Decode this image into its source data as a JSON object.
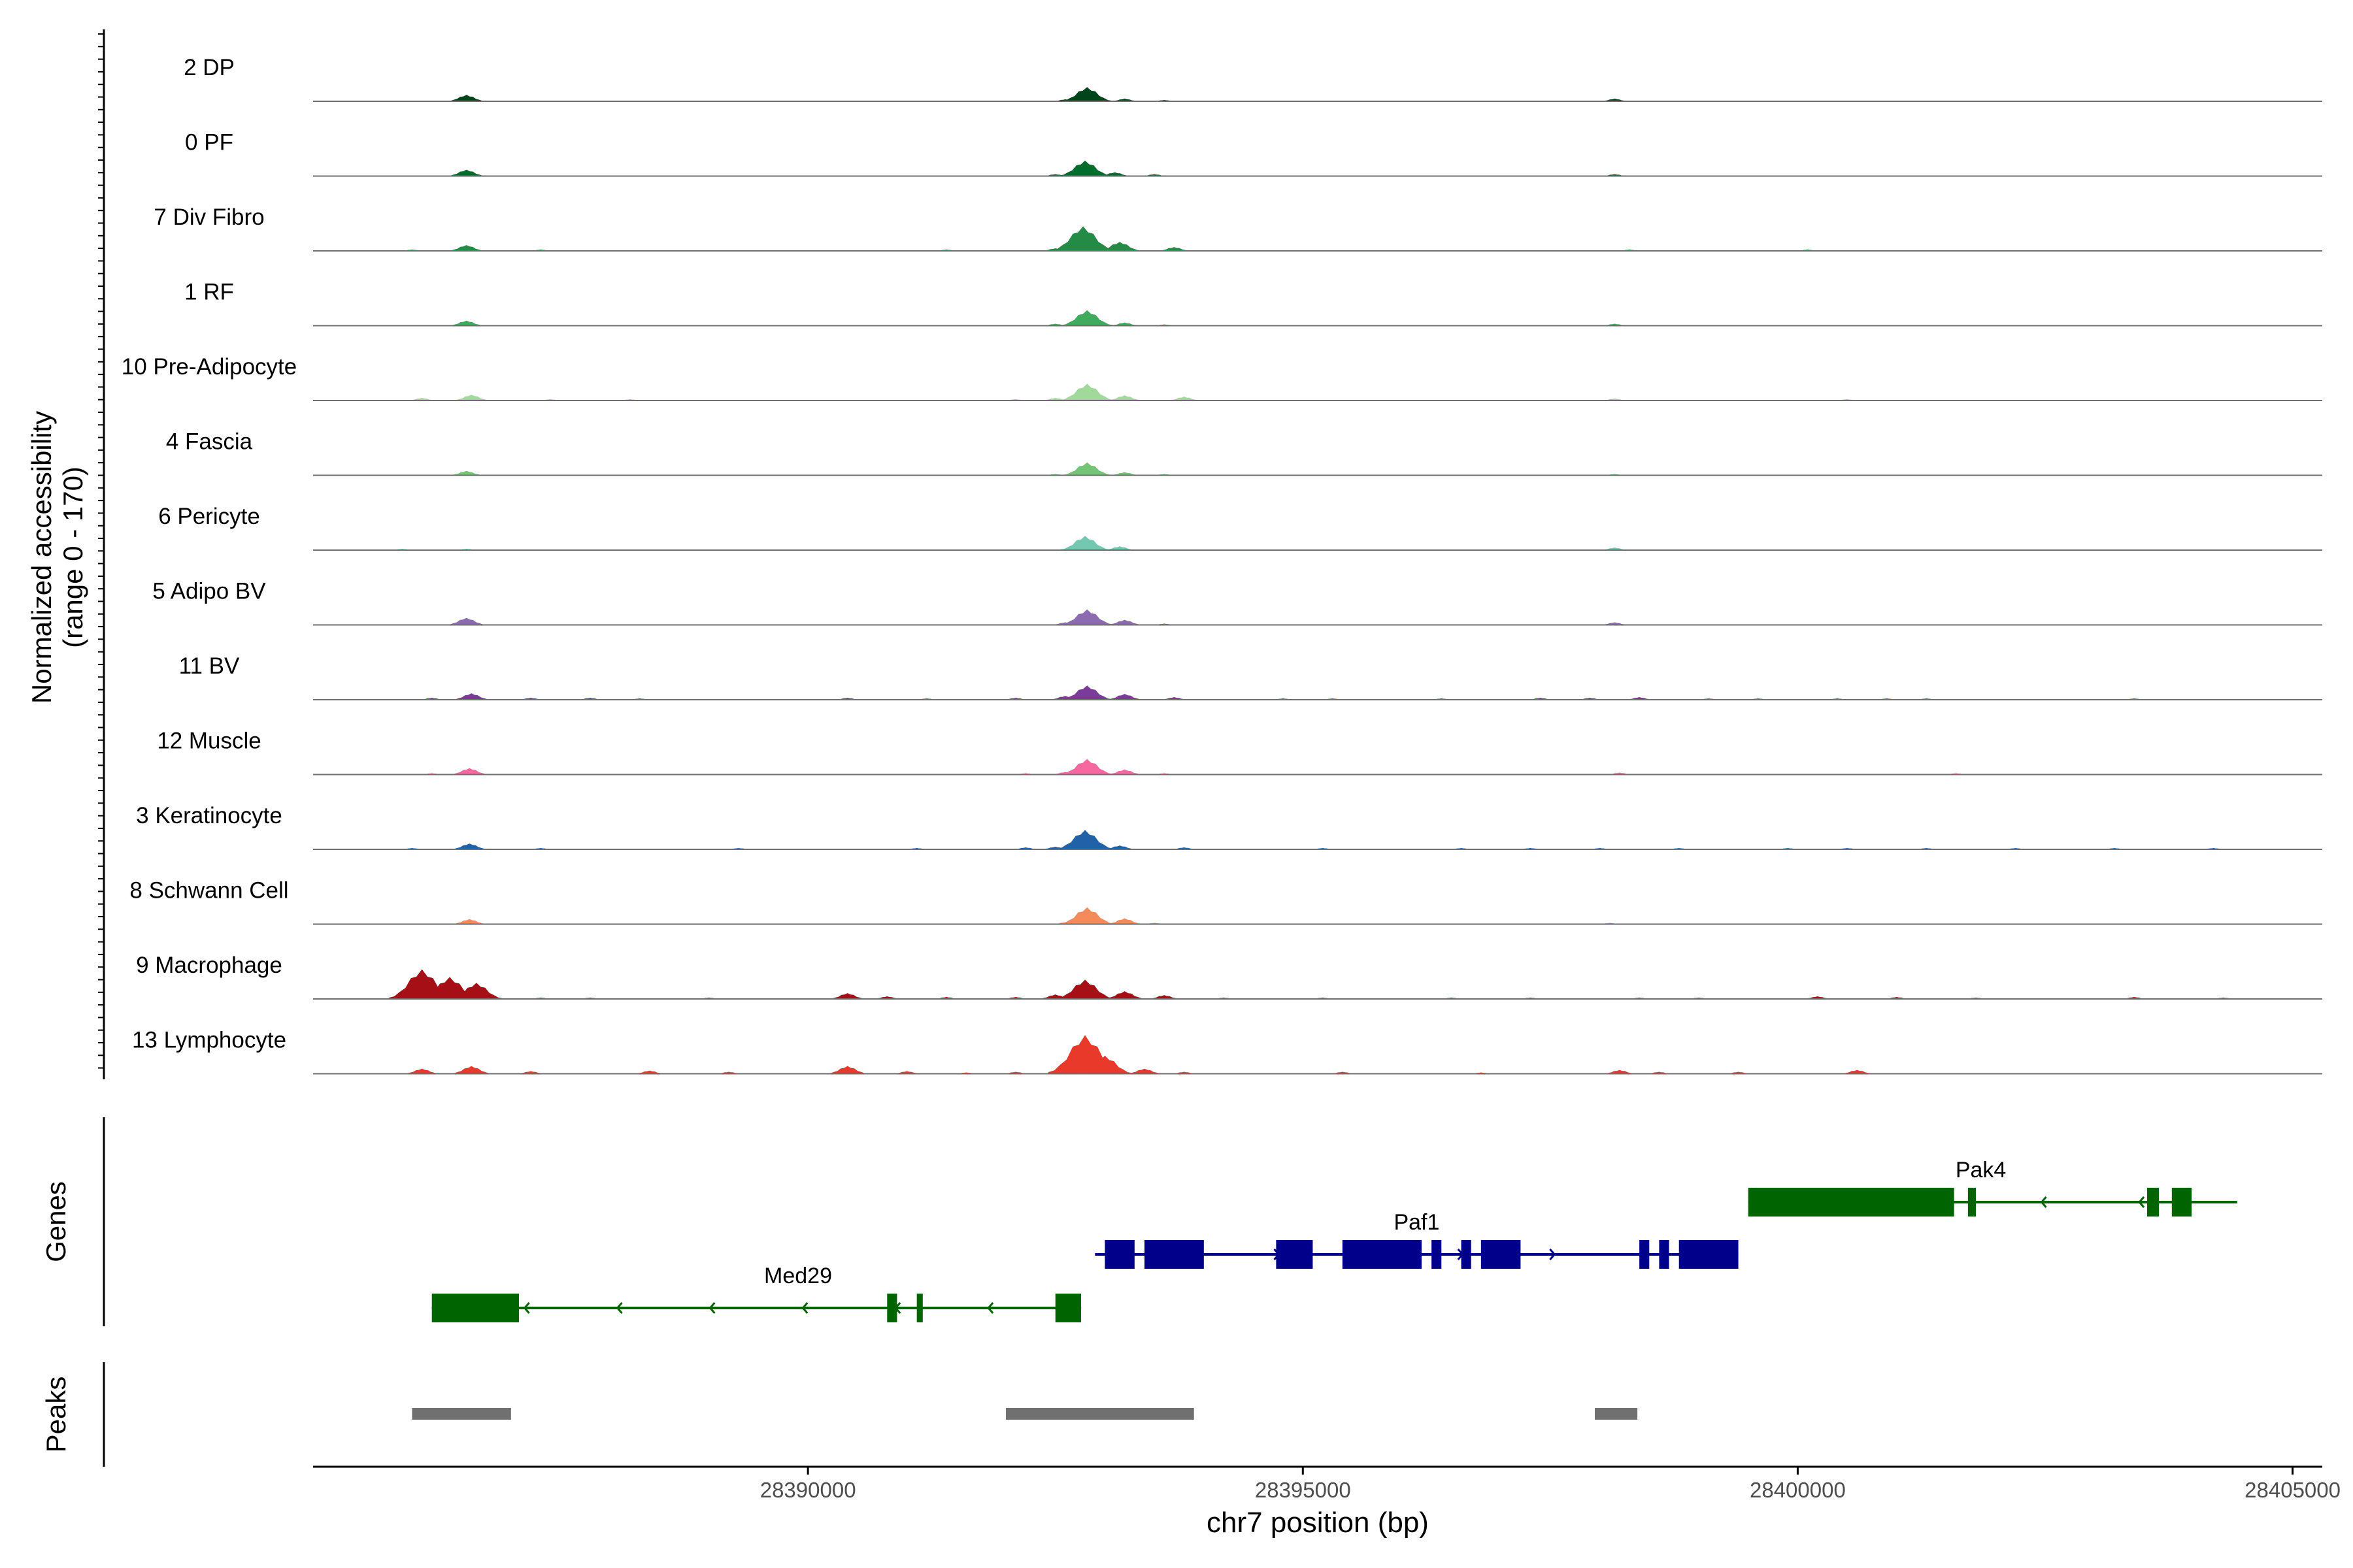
{
  "chart_data": {
    "type": "area",
    "title": "",
    "xlabel": "chr7 position (bp)",
    "ylabel_line1": "Normalized accessibility",
    "ylabel_line2": "(range 0 - 170)",
    "ylim": [
      0,
      170
    ],
    "xlim": [
      28385000,
      28405300
    ],
    "x_ticks": [
      {
        "value": 28390000,
        "label": "28390000"
      },
      {
        "value": 28395000,
        "label": "28395000"
      },
      {
        "value": 28400000,
        "label": "28400000"
      },
      {
        "value": 28405000,
        "label": "28405000"
      }
    ],
    "tracks": [
      {
        "name": "2 DP",
        "color": "#00441b",
        "peaks": [
          [
            28386550,
            10
          ],
          [
            28388100,
            1
          ],
          [
            28392600,
            3
          ],
          [
            28392820,
            22
          ],
          [
            28393200,
            4
          ],
          [
            28393600,
            2
          ],
          [
            28398150,
            4
          ],
          [
            28400700,
            1
          ],
          [
            28403000,
            1
          ]
        ]
      },
      {
        "name": "0 PF",
        "color": "#006d2c",
        "peaks": [
          [
            28386550,
            10
          ],
          [
            28388300,
            1
          ],
          [
            28392500,
            3
          ],
          [
            28392800,
            24
          ],
          [
            28393100,
            6
          ],
          [
            28393500,
            3
          ],
          [
            28396300,
            1
          ],
          [
            28398150,
            3
          ],
          [
            28400300,
            1
          ],
          [
            28401000,
            1
          ]
        ]
      },
      {
        "name": "7 Div Fibro",
        "color": "#238b45",
        "peaks": [
          [
            28386000,
            2
          ],
          [
            28386550,
            9
          ],
          [
            28387300,
            2
          ],
          [
            28388400,
            1
          ],
          [
            28389500,
            1
          ],
          [
            28391400,
            2
          ],
          [
            28392500,
            4
          ],
          [
            28392780,
            38
          ],
          [
            28393150,
            14
          ],
          [
            28393700,
            6
          ],
          [
            28395200,
            1
          ],
          [
            28396300,
            1
          ],
          [
            28397200,
            1
          ],
          [
            28398300,
            2
          ],
          [
            28399500,
            1
          ],
          [
            28400100,
            2
          ],
          [
            28401600,
            1
          ],
          [
            28402500,
            1
          ],
          [
            28403400,
            1
          ]
        ]
      },
      {
        "name": "1 RF",
        "color": "#41ab5d",
        "peaks": [
          [
            28386550,
            8
          ],
          [
            28388200,
            1
          ],
          [
            28392500,
            3
          ],
          [
            28392820,
            24
          ],
          [
            28393200,
            5
          ],
          [
            28393600,
            2
          ],
          [
            28398150,
            3
          ]
        ]
      },
      {
        "name": "10 Pre-Adipocyte",
        "color": "#a1d99b",
        "peaks": [
          [
            28386100,
            4
          ],
          [
            28386600,
            9
          ],
          [
            28387400,
            2
          ],
          [
            28388200,
            2
          ],
          [
            28389000,
            1
          ],
          [
            28390400,
            1
          ],
          [
            28392100,
            2
          ],
          [
            28392500,
            4
          ],
          [
            28392820,
            26
          ],
          [
            28393200,
            8
          ],
          [
            28393800,
            6
          ],
          [
            28395400,
            1
          ],
          [
            28396400,
            1
          ],
          [
            28398150,
            3
          ],
          [
            28399300,
            1
          ],
          [
            28400500,
            2
          ],
          [
            28401600,
            1
          ],
          [
            28402500,
            1
          ],
          [
            28403200,
            1
          ],
          [
            28404000,
            1
          ]
        ]
      },
      {
        "name": "4 Fascia",
        "color": "#74c476",
        "peaks": [
          [
            28386550,
            7
          ],
          [
            28392500,
            2
          ],
          [
            28392820,
            20
          ],
          [
            28393200,
            5
          ],
          [
            28393600,
            2
          ],
          [
            28398150,
            2
          ]
        ]
      },
      {
        "name": "6 Pericyte",
        "color": "#74c8b1",
        "peaks": [
          [
            28385900,
            2
          ],
          [
            28386550,
            2
          ],
          [
            28392600,
            2
          ],
          [
            28392800,
            22
          ],
          [
            28393150,
            6
          ],
          [
            28393600,
            1
          ],
          [
            28398150,
            4
          ],
          [
            28400600,
            1
          ]
        ]
      },
      {
        "name": "5 Adipo BV",
        "color": "#8c6bb1",
        "peaks": [
          [
            28386550,
            11
          ],
          [
            28387200,
            1
          ],
          [
            28392600,
            4
          ],
          [
            28392820,
            24
          ],
          [
            28393200,
            8
          ],
          [
            28393600,
            2
          ],
          [
            28398150,
            4
          ]
        ]
      },
      {
        "name": "11 BV",
        "color": "#7a3b9b",
        "peaks": [
          [
            28386200,
            3
          ],
          [
            28386600,
            10
          ],
          [
            28387200,
            3
          ],
          [
            28387800,
            3
          ],
          [
            28388300,
            2
          ],
          [
            28390400,
            3
          ],
          [
            28391200,
            2
          ],
          [
            28392100,
            3
          ],
          [
            28392600,
            6
          ],
          [
            28392820,
            22
          ],
          [
            28393200,
            9
          ],
          [
            28393700,
            4
          ],
          [
            28394800,
            2
          ],
          [
            28395300,
            2
          ],
          [
            28396400,
            2
          ],
          [
            28397400,
            3
          ],
          [
            28397900,
            3
          ],
          [
            28398400,
            4
          ],
          [
            28399100,
            2
          ],
          [
            28399600,
            2
          ],
          [
            28400400,
            2
          ],
          [
            28400900,
            2
          ],
          [
            28401300,
            2
          ],
          [
            28402700,
            1
          ],
          [
            28403400,
            2
          ]
        ]
      },
      {
        "name": "12 Muscle",
        "color": "#f768a1",
        "peaks": [
          [
            28386200,
            2
          ],
          [
            28386580,
            10
          ],
          [
            28387700,
            1
          ],
          [
            28392200,
            2
          ],
          [
            28392600,
            4
          ],
          [
            28392820,
            24
          ],
          [
            28393200,
            8
          ],
          [
            28393600,
            2
          ],
          [
            28398200,
            3
          ],
          [
            28400300,
            1
          ],
          [
            28401600,
            2
          ]
        ]
      },
      {
        "name": "3 Keratinocyte",
        "color": "#2161a8",
        "peaks": [
          [
            28386000,
            2
          ],
          [
            28386580,
            9
          ],
          [
            28387300,
            2
          ],
          [
            28389300,
            2
          ],
          [
            28391100,
            2
          ],
          [
            28392200,
            3
          ],
          [
            28392500,
            4
          ],
          [
            28392800,
            30
          ],
          [
            28393150,
            6
          ],
          [
            28393800,
            3
          ],
          [
            28395200,
            2
          ],
          [
            28396600,
            2
          ],
          [
            28397300,
            2
          ],
          [
            28398000,
            2
          ],
          [
            28398800,
            2
          ],
          [
            28399900,
            2
          ],
          [
            28400500,
            2
          ],
          [
            28401300,
            2
          ],
          [
            28402200,
            2
          ],
          [
            28403200,
            2
          ],
          [
            28404200,
            2
          ]
        ]
      },
      {
        "name": "8 Schwann Cell",
        "color": "#f58b5b",
        "peaks": [
          [
            28386580,
            8
          ],
          [
            28387000,
            1
          ],
          [
            28392600,
            3
          ],
          [
            28392820,
            26
          ],
          [
            28393200,
            9
          ],
          [
            28393500,
            2
          ],
          [
            28398100,
            2
          ]
        ]
      },
      {
        "name": "9 Macrophage",
        "color": "#a50f15",
        "peaks": [
          [
            28386100,
            46
          ],
          [
            28386380,
            34
          ],
          [
            28386650,
            25
          ],
          [
            28387300,
            2
          ],
          [
            28387800,
            2
          ],
          [
            28389000,
            2
          ],
          [
            28390400,
            9
          ],
          [
            28390800,
            4
          ],
          [
            28391400,
            3
          ],
          [
            28392100,
            3
          ],
          [
            28392500,
            7
          ],
          [
            28392800,
            30
          ],
          [
            28393200,
            12
          ],
          [
            28393600,
            6
          ],
          [
            28394200,
            2
          ],
          [
            28395200,
            2
          ],
          [
            28396500,
            2
          ],
          [
            28397300,
            2
          ],
          [
            28398400,
            2
          ],
          [
            28399000,
            2
          ],
          [
            28400200,
            4
          ],
          [
            28401000,
            3
          ],
          [
            28401800,
            2
          ],
          [
            28403400,
            3
          ],
          [
            28404300,
            2
          ]
        ]
      },
      {
        "name": "13 Lymphocyte",
        "color": "#e8392b",
        "peaks": [
          [
            28386100,
            8
          ],
          [
            28386600,
            12
          ],
          [
            28387200,
            4
          ],
          [
            28388400,
            5
          ],
          [
            28389200,
            3
          ],
          [
            28390400,
            12
          ],
          [
            28391000,
            4
          ],
          [
            28391600,
            2
          ],
          [
            28392100,
            3
          ],
          [
            28392600,
            12
          ],
          [
            28392800,
            60
          ],
          [
            28393000,
            28
          ],
          [
            28393400,
            8
          ],
          [
            28393800,
            3
          ],
          [
            28395400,
            3
          ],
          [
            28396800,
            2
          ],
          [
            28398200,
            6
          ],
          [
            28398600,
            3
          ],
          [
            28399400,
            3
          ],
          [
            28400600,
            6
          ]
        ]
      }
    ],
    "genes_label": "Genes",
    "genes": [
      {
        "name": "Med29",
        "color": "#006400",
        "start": 28386200,
        "end": 28392760,
        "strand": "-",
        "row": 3,
        "exons": [
          [
            28386200,
            28387080
          ],
          [
            28390800,
            28390900
          ],
          [
            28391100,
            28391160
          ],
          [
            28392500,
            28392760
          ]
        ],
        "label_x": 28389900
      },
      {
        "name": "Paf1",
        "color": "#00008b",
        "start": 28392900,
        "end": 28399400,
        "strand": "+",
        "row": 2,
        "exons": [
          [
            28393000,
            28393300
          ],
          [
            28393400,
            28394000
          ],
          [
            28394730,
            28395100
          ],
          [
            28395400,
            28396200
          ],
          [
            28396300,
            28396400
          ],
          [
            28396600,
            28396700
          ],
          [
            28396800,
            28397200
          ],
          [
            28398400,
            28398500
          ],
          [
            28398600,
            28398700
          ],
          [
            28398800,
            28399400
          ]
        ],
        "label_x": 28396150
      },
      {
        "name": "Pak4",
        "color": "#006400",
        "start": 28399500,
        "end": 28404440,
        "strand": "-",
        "row": 1,
        "exons": [
          [
            28399500,
            28401580
          ],
          [
            28401720,
            28401800
          ],
          [
            28403530,
            28403650
          ],
          [
            28403780,
            28403980
          ]
        ],
        "label_x": 28401850
      }
    ],
    "peaks_label": "Peaks",
    "peak_regions": [
      [
        28386000,
        28387000
      ],
      [
        28392000,
        28393900
      ],
      [
        28397950,
        28398380
      ]
    ]
  }
}
